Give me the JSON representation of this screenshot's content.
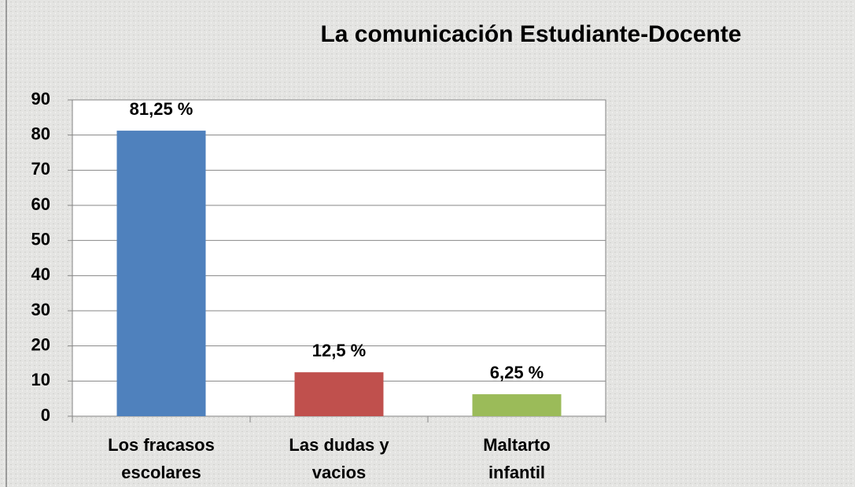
{
  "chart_data": {
    "type": "bar",
    "title": "La  comunicación Estudiante-Docente",
    "categories": [
      "Los fracasos escolares",
      "Las dudas y vacios",
      "Maltarto infantil"
    ],
    "values": [
      81.25,
      12.5,
      6.25
    ],
    "value_labels": [
      "81,25 %",
      "12,5 %",
      "6,25 %"
    ],
    "colors": [
      "#4f81bd",
      "#c0504d",
      "#9bbb59"
    ],
    "ylim": [
      0,
      90
    ],
    "yticks": [
      0,
      10,
      20,
      30,
      40,
      50,
      60,
      70,
      80,
      90
    ],
    "grid": true
  }
}
